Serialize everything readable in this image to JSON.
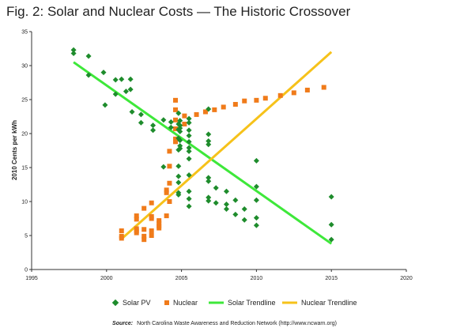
{
  "colors": {
    "solar": "#1e8c2c",
    "nuclear": "#f07b1a",
    "solar_trend": "#3ee83a",
    "nuclear_trend": "#f6c21a",
    "axis": "#333333"
  },
  "chart_data": {
    "type": "scatter",
    "title": "Fig. 2: Solar and Nuclear Costs — The Historic Crossover",
    "xlabel": "",
    "ylabel": "2010 Cents per kWh",
    "xlim": [
      1995,
      2020
    ],
    "ylim": [
      0,
      35
    ],
    "x_ticks": [
      "1995",
      "2000",
      "2005",
      "2010",
      "2015",
      "2020"
    ],
    "y_ticks": [
      "0",
      "5",
      "10",
      "15",
      "20",
      "25",
      "30",
      "35"
    ],
    "grid": false,
    "legend_position": "bottom",
    "series": [
      {
        "name": "Solar PV",
        "marker": "diamond",
        "points": [
          [
            1997.8,
            32.3
          ],
          [
            1997.8,
            31.8
          ],
          [
            1998.8,
            31.4
          ],
          [
            1998.8,
            28.6
          ],
          [
            1999.8,
            29.0
          ],
          [
            1999.9,
            24.2
          ],
          [
            2000.6,
            27.9
          ],
          [
            2000.6,
            25.8
          ],
          [
            2001.0,
            28.0
          ],
          [
            2001.3,
            26.2
          ],
          [
            2001.6,
            28.0
          ],
          [
            2001.6,
            26.5
          ],
          [
            2001.7,
            23.2
          ],
          [
            2002.3,
            22.8
          ],
          [
            2002.3,
            21.6
          ],
          [
            2003.1,
            21.2
          ],
          [
            2003.1,
            20.5
          ],
          [
            2003.8,
            22.0
          ],
          [
            2003.8,
            15.1
          ],
          [
            2004.3,
            21.7
          ],
          [
            2004.3,
            20.9
          ],
          [
            2004.8,
            23.0
          ],
          [
            2004.8,
            21.4
          ],
          [
            2004.8,
            20.6
          ],
          [
            2004.8,
            19.3
          ],
          [
            2004.8,
            17.6
          ],
          [
            2004.8,
            15.2
          ],
          [
            2004.8,
            13.7
          ],
          [
            2004.8,
            12.8
          ],
          [
            2004.8,
            11.3
          ],
          [
            2004.8,
            11.0
          ],
          [
            2004.9,
            21.9
          ],
          [
            2004.9,
            21.2
          ],
          [
            2004.9,
            20.8
          ],
          [
            2004.9,
            20.3
          ],
          [
            2004.9,
            19.0
          ],
          [
            2004.9,
            18.2
          ],
          [
            2004.9,
            17.8
          ],
          [
            2005.5,
            22.2
          ],
          [
            2005.5,
            21.6
          ],
          [
            2005.5,
            20.5
          ],
          [
            2005.5,
            19.7
          ],
          [
            2005.5,
            18.8
          ],
          [
            2005.5,
            17.9
          ],
          [
            2005.5,
            17.4
          ],
          [
            2005.5,
            16.3
          ],
          [
            2005.5,
            13.9
          ],
          [
            2005.5,
            11.5
          ],
          [
            2005.5,
            10.4
          ],
          [
            2005.5,
            9.3
          ],
          [
            2006.8,
            23.6
          ],
          [
            2006.8,
            19.9
          ],
          [
            2006.8,
            18.9
          ],
          [
            2006.8,
            18.4
          ],
          [
            2006.8,
            13.5
          ],
          [
            2006.8,
            13.0
          ],
          [
            2006.8,
            10.6
          ],
          [
            2006.8,
            10.1
          ],
          [
            2007.3,
            12.0
          ],
          [
            2007.3,
            9.8
          ],
          [
            2008.0,
            11.5
          ],
          [
            2008.0,
            9.6
          ],
          [
            2008.0,
            8.9
          ],
          [
            2008.6,
            10.2
          ],
          [
            2008.6,
            8.1
          ],
          [
            2009.2,
            8.9
          ],
          [
            2009.2,
            7.3
          ],
          [
            2010.0,
            16.0
          ],
          [
            2010.0,
            12.2
          ],
          [
            2010.0,
            10.2
          ],
          [
            2010.0,
            7.6
          ],
          [
            2010.0,
            6.5
          ],
          [
            2015.0,
            10.7
          ],
          [
            2015.0,
            6.6
          ],
          [
            2015.0,
            4.4
          ]
        ]
      },
      {
        "name": "Nuclear",
        "marker": "square",
        "points": [
          [
            2001.0,
            5.7
          ],
          [
            2001.0,
            4.9
          ],
          [
            2001.0,
            4.6
          ],
          [
            2002.0,
            7.9
          ],
          [
            2002.0,
            7.4
          ],
          [
            2002.0,
            6.0
          ],
          [
            2002.0,
            5.7
          ],
          [
            2002.0,
            5.4
          ],
          [
            2002.5,
            9.0
          ],
          [
            2002.5,
            5.9
          ],
          [
            2002.5,
            4.9
          ],
          [
            2002.5,
            4.4
          ],
          [
            2003.0,
            9.8
          ],
          [
            2003.0,
            7.8
          ],
          [
            2003.0,
            7.5
          ],
          [
            2003.0,
            5.7
          ],
          [
            2003.0,
            5.0
          ],
          [
            2003.5,
            7.2
          ],
          [
            2003.5,
            6.8
          ],
          [
            2003.5,
            6.4
          ],
          [
            2003.5,
            6.1
          ],
          [
            2004.0,
            11.7
          ],
          [
            2004.0,
            11.3
          ],
          [
            2004.0,
            7.9
          ],
          [
            2004.2,
            17.4
          ],
          [
            2004.2,
            15.2
          ],
          [
            2004.2,
            12.7
          ],
          [
            2004.2,
            10.0
          ],
          [
            2004.6,
            24.9
          ],
          [
            2004.6,
            23.5
          ],
          [
            2004.6,
            22.0
          ],
          [
            2004.6,
            20.7
          ],
          [
            2004.6,
            19.2
          ],
          [
            2004.6,
            18.8
          ],
          [
            2005.2,
            21.4
          ],
          [
            2005.2,
            22.6
          ],
          [
            2006.0,
            22.8
          ],
          [
            2006.6,
            23.2
          ],
          [
            2007.2,
            23.5
          ],
          [
            2007.8,
            23.9
          ],
          [
            2008.6,
            24.3
          ],
          [
            2009.2,
            24.8
          ],
          [
            2010.0,
            24.9
          ],
          [
            2010.6,
            25.2
          ],
          [
            2011.6,
            25.6
          ],
          [
            2012.5,
            26.0
          ],
          [
            2013.4,
            26.4
          ],
          [
            2014.5,
            26.8
          ]
        ]
      }
    ],
    "trendlines": [
      {
        "name": "Solar Trendline",
        "x": [
          1997.8,
          2015.0
        ],
        "y": [
          30.5,
          3.8
        ]
      },
      {
        "name": "Nuclear Trendline",
        "x": [
          2001.0,
          2015.0
        ],
        "y": [
          4.5,
          32.0
        ]
      }
    ],
    "source_label": "Source:",
    "source_text": "North Carolina Waste Awareness and Reduction Network (http://www.ncwarn.org)"
  }
}
